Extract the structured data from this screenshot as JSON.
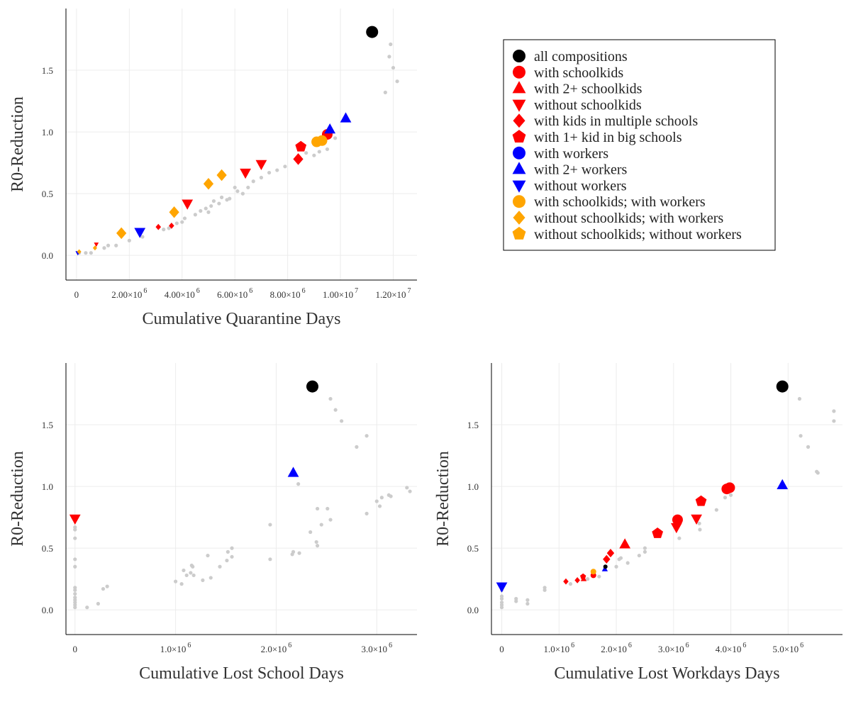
{
  "colors": {
    "black": "#000000",
    "red": "#ff0000",
    "blue": "#0000ff",
    "orange": "#ffa500",
    "gray": "#cccccc"
  },
  "legend": {
    "placement": "top-right (empty fourth panel)",
    "entries": [
      {
        "label": "all compositions",
        "color": "#000000",
        "marker": "circle"
      },
      {
        "label": "with schoolkids",
        "color": "#ff0000",
        "marker": "circle"
      },
      {
        "label": "with 2+ schoolkids",
        "color": "#ff0000",
        "marker": "triangle-up"
      },
      {
        "label": "without schoolkids",
        "color": "#ff0000",
        "marker": "triangle-down"
      },
      {
        "label": "with kids in multiple schools",
        "color": "#ff0000",
        "marker": "diamond"
      },
      {
        "label": "with 1+ kid in big schools",
        "color": "#ff0000",
        "marker": "pentagon"
      },
      {
        "label": "with workers",
        "color": "#0000ff",
        "marker": "circle"
      },
      {
        "label": "with 2+ workers",
        "color": "#0000ff",
        "marker": "triangle-up"
      },
      {
        "label": "without workers",
        "color": "#0000ff",
        "marker": "triangle-down"
      },
      {
        "label": "with schoolkids; with workers",
        "color": "#ffa500",
        "marker": "circle"
      },
      {
        "label": "without schoolkids; with workers",
        "color": "#ffa500",
        "marker": "diamond"
      },
      {
        "label": "without schoolkids; without workers",
        "color": "#ffa500",
        "marker": "pentagon"
      }
    ]
  },
  "chart_data": [
    {
      "type": "scatter",
      "xlabel": "Cumulative Quarantine Days",
      "ylabel": "R0-Reduction",
      "xlim": [
        -400000,
        12900000
      ],
      "ylim": [
        -0.2,
        2.0
      ],
      "grid": true,
      "xticks": [
        {
          "v": 0,
          "m": "0",
          "e": ""
        },
        {
          "v": 2000000,
          "m": "2.00×10",
          "e": "6"
        },
        {
          "v": 4000000,
          "m": "4.00×10",
          "e": "6"
        },
        {
          "v": 6000000,
          "m": "6.00×10",
          "e": "6"
        },
        {
          "v": 8000000,
          "m": "8.00×10",
          "e": "6"
        },
        {
          "v": 10000000,
          "m": "1.00×10",
          "e": "7"
        },
        {
          "v": 12000000,
          "m": "1.20×10",
          "e": "7"
        }
      ],
      "yticks": [
        {
          "v": 0,
          "m": "0.0"
        },
        {
          "v": 0.5,
          "m": "0.5"
        },
        {
          "v": 1.0,
          "m": "1.0"
        },
        {
          "v": 1.5,
          "m": "1.5"
        }
      ],
      "background": [
        [
          100000,
          0.02
        ],
        [
          350000,
          0.02
        ],
        [
          550000,
          0.02
        ],
        [
          1050000,
          0.06
        ],
        [
          1200000,
          0.08
        ],
        [
          1500000,
          0.08
        ],
        [
          2000000,
          0.12
        ],
        [
          2500000,
          0.15
        ],
        [
          3300000,
          0.21
        ],
        [
          3500000,
          0.22
        ],
        [
          3800000,
          0.26
        ],
        [
          4000000,
          0.27
        ],
        [
          4100000,
          0.3
        ],
        [
          4500000,
          0.33
        ],
        [
          4700000,
          0.36
        ],
        [
          4900000,
          0.38
        ],
        [
          5000000,
          0.35
        ],
        [
          5100000,
          0.4
        ],
        [
          5200000,
          0.44
        ],
        [
          5400000,
          0.42
        ],
        [
          5500000,
          0.47
        ],
        [
          5700000,
          0.45
        ],
        [
          5800000,
          0.46
        ],
        [
          6000000,
          0.55
        ],
        [
          6100000,
          0.52
        ],
        [
          6300000,
          0.5
        ],
        [
          6500000,
          0.55
        ],
        [
          6700000,
          0.6
        ],
        [
          7000000,
          0.63
        ],
        [
          7300000,
          0.67
        ],
        [
          7600000,
          0.69
        ],
        [
          7900000,
          0.72
        ],
        [
          8400000,
          0.8
        ],
        [
          8700000,
          0.83
        ],
        [
          9000000,
          0.81
        ],
        [
          9200000,
          0.84
        ],
        [
          9500000,
          0.86
        ],
        [
          9800000,
          0.95
        ],
        [
          11700000,
          1.32
        ],
        [
          11850000,
          1.61
        ],
        [
          11900000,
          1.71
        ],
        [
          12000000,
          1.52
        ],
        [
          12150000,
          1.41
        ]
      ],
      "series": [
        {
          "name": "all compositions",
          "color": "#000000",
          "marker": "circle",
          "points": [
            [
              11200000,
              1.81
            ]
          ]
        },
        {
          "name": "with schoolkids",
          "color": "#ff0000",
          "marker": "circle",
          "points": [
            [
              9500000,
              0.98
            ]
          ]
        },
        {
          "name": "without schoolkids",
          "color": "#ff0000",
          "marker": "triangle-down",
          "points": [
            [
              750000,
              0.09
            ],
            [
              4200000,
              0.42
            ],
            [
              6400000,
              0.67
            ],
            [
              7000000,
              0.74
            ]
          ]
        },
        {
          "name": "with kids in multiple schools",
          "color": "#ff0000",
          "marker": "diamond",
          "points": [
            [
              3100000,
              0.23
            ],
            [
              3600000,
              0.24
            ],
            [
              8400000,
              0.78
            ]
          ]
        },
        {
          "name": "with 1+ kid in big schools",
          "color": "#ff0000",
          "marker": "pentagon",
          "points": [
            [
              8500000,
              0.88
            ]
          ]
        },
        {
          "name": "with 2+ workers",
          "color": "#0000ff",
          "marker": "triangle-up",
          "points": [
            [
              9600000,
              1.02
            ],
            [
              10200000,
              1.11
            ]
          ]
        },
        {
          "name": "without workers",
          "color": "#0000ff",
          "marker": "triangle-down",
          "points": [
            [
              50000,
              0.02
            ],
            [
              2400000,
              0.19
            ]
          ]
        },
        {
          "name": "with schoolkids; with workers",
          "color": "#ffa500",
          "marker": "circle",
          "points": [
            [
              9100000,
              0.92
            ],
            [
              9300000,
              0.93
            ]
          ]
        },
        {
          "name": "without schoolkids; with workers",
          "color": "#ffa500",
          "marker": "diamond",
          "points": [
            [
              100000,
              0.03
            ],
            [
              700000,
              0.06
            ],
            [
              1700000,
              0.18
            ],
            [
              3700000,
              0.35
            ],
            [
              5000000,
              0.58
            ],
            [
              5500000,
              0.65
            ]
          ]
        }
      ]
    },
    {
      "type": "scatter",
      "xlabel": "Cumulative Lost School Days",
      "ylabel": "R0-Reduction",
      "xlim": [
        -90000,
        3400000
      ],
      "ylim": [
        -0.2,
        2.0
      ],
      "grid": true,
      "xticks": [
        {
          "v": 0,
          "m": "0",
          "e": ""
        },
        {
          "v": 1000000,
          "m": "1.0×10",
          "e": "6"
        },
        {
          "v": 2000000,
          "m": "2.0×10",
          "e": "6"
        },
        {
          "v": 3000000,
          "m": "3.0×10",
          "e": "6"
        }
      ],
      "yticks": [
        {
          "v": 0,
          "m": "0.0"
        },
        {
          "v": 0.5,
          "m": "0.5"
        },
        {
          "v": 1.0,
          "m": "1.0"
        },
        {
          "v": 1.5,
          "m": "1.5"
        }
      ],
      "background": [
        [
          0,
          0.02
        ],
        [
          0,
          0.04
        ],
        [
          0,
          0.06
        ],
        [
          0,
          0.08
        ],
        [
          0,
          0.1
        ],
        [
          0,
          0.13
        ],
        [
          0,
          0.16
        ],
        [
          0,
          0.18
        ],
        [
          0,
          0.35
        ],
        [
          0,
          0.41
        ],
        [
          0,
          0.58
        ],
        [
          0,
          0.65
        ],
        [
          0,
          0.67
        ],
        [
          120000,
          0.02
        ],
        [
          230000,
          0.05
        ],
        [
          280000,
          0.17
        ],
        [
          320000,
          0.19
        ],
        [
          1000000,
          0.23
        ],
        [
          1060000,
          0.21
        ],
        [
          1080000,
          0.32
        ],
        [
          1110000,
          0.28
        ],
        [
          1150000,
          0.3
        ],
        [
          1160000,
          0.36
        ],
        [
          1170000,
          0.35
        ],
        [
          1180000,
          0.28
        ],
        [
          1270000,
          0.24
        ],
        [
          1320000,
          0.44
        ],
        [
          1350000,
          0.26
        ],
        [
          1440000,
          0.35
        ],
        [
          1510000,
          0.4
        ],
        [
          1520000,
          0.47
        ],
        [
          1560000,
          0.5
        ],
        [
          1560000,
          0.43
        ],
        [
          1940000,
          0.69
        ],
        [
          1940000,
          0.41
        ],
        [
          2160000,
          0.45
        ],
        [
          2170000,
          0.47
        ],
        [
          2230000,
          0.46
        ],
        [
          2220000,
          1.02
        ],
        [
          2340000,
          0.63
        ],
        [
          2400000,
          0.55
        ],
        [
          2410000,
          0.52
        ],
        [
          2410000,
          0.82
        ],
        [
          2450000,
          0.69
        ],
        [
          2510000,
          0.82
        ],
        [
          2540000,
          0.73
        ],
        [
          2540000,
          1.71
        ],
        [
          2590000,
          1.62
        ],
        [
          2650000,
          1.53
        ],
        [
          2800000,
          1.32
        ],
        [
          2900000,
          1.41
        ],
        [
          2900000,
          0.78
        ],
        [
          3000000,
          0.88
        ],
        [
          3030000,
          0.84
        ],
        [
          3050000,
          0.91
        ],
        [
          3120000,
          0.93
        ],
        [
          3140000,
          0.92
        ],
        [
          3300000,
          0.99
        ],
        [
          3330000,
          0.96
        ]
      ],
      "series": [
        {
          "name": "all compositions",
          "color": "#000000",
          "marker": "circle",
          "points": [
            [
              2360000,
              1.81
            ]
          ]
        },
        {
          "name": "with 2+ workers",
          "color": "#0000ff",
          "marker": "triangle-up",
          "points": [
            [
              2170000,
              1.11
            ]
          ]
        },
        {
          "name": "without schoolkids",
          "color": "#ff0000",
          "marker": "triangle-down",
          "points": [
            [
              0,
              0.74
            ]
          ]
        }
      ]
    },
    {
      "type": "scatter",
      "xlabel": "Cumulative Lost Workdays Days",
      "ylabel": "R0-Reduction",
      "xlim": [
        -180000,
        5950000
      ],
      "ylim": [
        -0.2,
        2.0
      ],
      "grid": true,
      "xticks": [
        {
          "v": 0,
          "m": "0",
          "e": ""
        },
        {
          "v": 1000000,
          "m": "1.0×10",
          "e": "6"
        },
        {
          "v": 2000000,
          "m": "2.0×10",
          "e": "6"
        },
        {
          "v": 3000000,
          "m": "3.0×10",
          "e": "6"
        },
        {
          "v": 4000000,
          "m": "4.0×10",
          "e": "6"
        },
        {
          "v": 5000000,
          "m": "5.0×10",
          "e": "6"
        }
      ],
      "yticks": [
        {
          "v": 0,
          "m": "0.0"
        },
        {
          "v": 0.5,
          "m": "0.5"
        },
        {
          "v": 1.0,
          "m": "1.0"
        },
        {
          "v": 1.5,
          "m": "1.5"
        }
      ],
      "background": [
        [
          0,
          0.02
        ],
        [
          0,
          0.04
        ],
        [
          0,
          0.06
        ],
        [
          0,
          0.09
        ],
        [
          0,
          0.11
        ],
        [
          0,
          0.16
        ],
        [
          250000,
          0.07
        ],
        [
          250000,
          0.09
        ],
        [
          450000,
          0.05
        ],
        [
          450000,
          0.08
        ],
        [
          750000,
          0.16
        ],
        [
          750000,
          0.18
        ],
        [
          1200000,
          0.21
        ],
        [
          1500000,
          0.25
        ],
        [
          1700000,
          0.27
        ],
        [
          2000000,
          0.35
        ],
        [
          2050000,
          0.41
        ],
        [
          2080000,
          0.42
        ],
        [
          2200000,
          0.38
        ],
        [
          2400000,
          0.44
        ],
        [
          2500000,
          0.47
        ],
        [
          2500000,
          0.5
        ],
        [
          3050000,
          0.68
        ],
        [
          3100000,
          0.58
        ],
        [
          3450000,
          0.7
        ],
        [
          3460000,
          0.65
        ],
        [
          3750000,
          0.81
        ],
        [
          3900000,
          0.91
        ],
        [
          4000000,
          0.93
        ],
        [
          5200000,
          1.71
        ],
        [
          5220000,
          1.41
        ],
        [
          5350000,
          1.32
        ],
        [
          5500000,
          1.12
        ],
        [
          5520000,
          1.11
        ],
        [
          5800000,
          1.61
        ],
        [
          5800000,
          1.53
        ]
      ],
      "series": [
        {
          "name": "all compositions",
          "color": "#000000",
          "marker": "circle",
          "points": [
            [
              4900000,
              1.81
            ]
          ]
        },
        {
          "name": "with schoolkids",
          "color": "#ff0000",
          "marker": "circle",
          "points": [
            [
              1600000,
              0.28
            ],
            [
              3070000,
              0.73
            ],
            [
              3930000,
              0.98
            ],
            [
              3980000,
              0.99
            ]
          ]
        },
        {
          "name": "with 2+ schoolkids",
          "color": "#ff0000",
          "marker": "triangle-up",
          "points": [
            [
              1430000,
              0.25
            ],
            [
              2150000,
              0.53
            ]
          ]
        },
        {
          "name": "without schoolkids",
          "color": "#ff0000",
          "marker": "triangle-down",
          "points": [
            [
              3050000,
              0.67
            ],
            [
              3400000,
              0.74
            ]
          ]
        },
        {
          "name": "with kids in multiple schools",
          "color": "#ff0000",
          "marker": "diamond",
          "points": [
            [
              1120000,
              0.23
            ],
            [
              1320000,
              0.24
            ],
            [
              1830000,
              0.41
            ],
            [
              1900000,
              0.46
            ]
          ]
        },
        {
          "name": "with 1+ kid in big schools",
          "color": "#ff0000",
          "marker": "pentagon",
          "points": [
            [
              1420000,
              0.27
            ],
            [
              2720000,
              0.62
            ],
            [
              3480000,
              0.88
            ]
          ]
        },
        {
          "name": "with 2+ workers",
          "color": "#0000ff",
          "marker": "triangle-up",
          "points": [
            [
              1800000,
              0.33
            ],
            [
              4900000,
              1.01
            ]
          ]
        },
        {
          "name": "without workers",
          "color": "#0000ff",
          "marker": "triangle-down",
          "points": [
            [
              0,
              0.19
            ]
          ]
        },
        {
          "name": "with schoolkids; with workers",
          "color": "#ffa500",
          "marker": "circle",
          "points": [
            [
              1600000,
              0.31
            ]
          ]
        },
        {
          "name": "all compositions",
          "color": "#000000",
          "marker": "circle",
          "points": [
            [
              1810000,
              0.35
            ]
          ]
        }
      ]
    }
  ]
}
